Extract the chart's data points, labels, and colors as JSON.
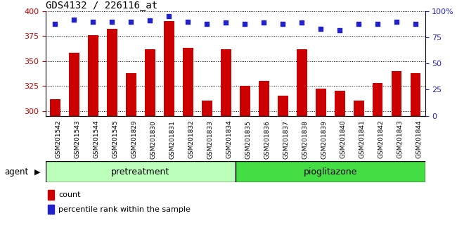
{
  "title": "GDS4132 / 226116_at",
  "samples": [
    "GSM201542",
    "GSM201543",
    "GSM201544",
    "GSM201545",
    "GSM201829",
    "GSM201830",
    "GSM201831",
    "GSM201832",
    "GSM201833",
    "GSM201834",
    "GSM201835",
    "GSM201836",
    "GSM201837",
    "GSM201838",
    "GSM201839",
    "GSM201840",
    "GSM201841",
    "GSM201842",
    "GSM201843",
    "GSM201844"
  ],
  "counts": [
    312,
    358,
    376,
    382,
    338,
    362,
    390,
    363,
    310,
    362,
    325,
    330,
    315,
    362,
    322,
    320,
    310,
    328,
    340,
    338
  ],
  "percentiles": [
    88,
    92,
    90,
    90,
    90,
    91,
    95,
    90,
    88,
    89,
    88,
    89,
    88,
    89,
    83,
    82,
    88,
    88,
    90,
    88
  ],
  "n_pretreatment": 10,
  "n_pioglitazone": 10,
  "ylim_left": [
    295,
    400
  ],
  "ylim_right": [
    0,
    100
  ],
  "yticks_left": [
    300,
    325,
    350,
    375,
    400
  ],
  "yticks_right": [
    0,
    25,
    50,
    75,
    100
  ],
  "bar_color": "#cc0000",
  "dot_color": "#2222cc",
  "pretreatment_color": "#bbffbb",
  "pioglitazone_color": "#44dd44",
  "xtick_bg": "#c8c8c8",
  "legend_count": "count",
  "legend_pct": "percentile rank within the sample",
  "bar_width": 0.55,
  "title_fontsize": 10,
  "tick_fontsize": 7,
  "band_fontsize": 9
}
